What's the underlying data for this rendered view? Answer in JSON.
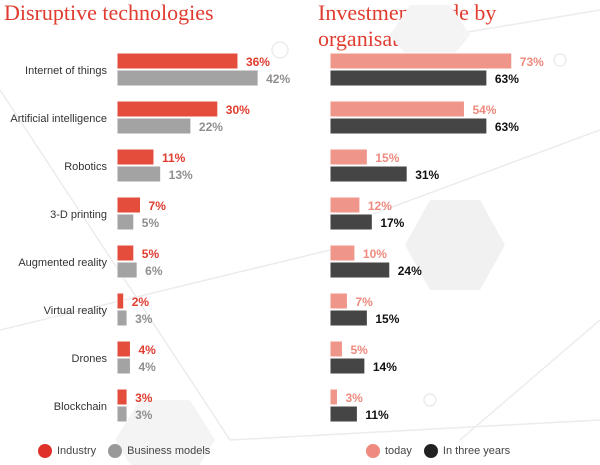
{
  "chart_data": [
    {
      "type": "bar",
      "orientation": "horizontal",
      "title": "Disruptive technologies",
      "categories": [
        "Internet of things",
        "Artificial intelligence",
        "Robotics",
        "3-D printing",
        "Augmented reality",
        "Virtual reality",
        "Drones",
        "Blockchain"
      ],
      "series": [
        {
          "name": "Industry",
          "values": [
            36,
            30,
            11,
            7,
            5,
            2,
            4,
            3
          ],
          "color": "#e44c3c",
          "label_color": "#e03c2f"
        },
        {
          "name": "Business models",
          "values": [
            42,
            22,
            13,
            5,
            6,
            3,
            4,
            3
          ],
          "color": "#a3a3a3",
          "label_color": "#8f8f8f"
        }
      ],
      "unit": "%",
      "legend": "bottom"
    },
    {
      "type": "bar",
      "orientation": "horizontal",
      "title": "Investment made by organisations",
      "categories": [
        "Internet of things",
        "Artificial intelligence",
        "Robotics",
        "3-D printing",
        "Augmented reality",
        "Virtual reality",
        "Drones",
        "Blockchain"
      ],
      "series": [
        {
          "name": "today",
          "values": [
            73,
            54,
            15,
            12,
            10,
            7,
            5,
            3
          ],
          "color": "#f0958a",
          "label_color": "#ef8a7e"
        },
        {
          "name": "In three years",
          "values": [
            63,
            63,
            31,
            17,
            24,
            15,
            14,
            11
          ],
          "color": "#454545",
          "label_color": "#111111"
        }
      ],
      "unit": "%",
      "legend": "bottom"
    }
  ]
}
